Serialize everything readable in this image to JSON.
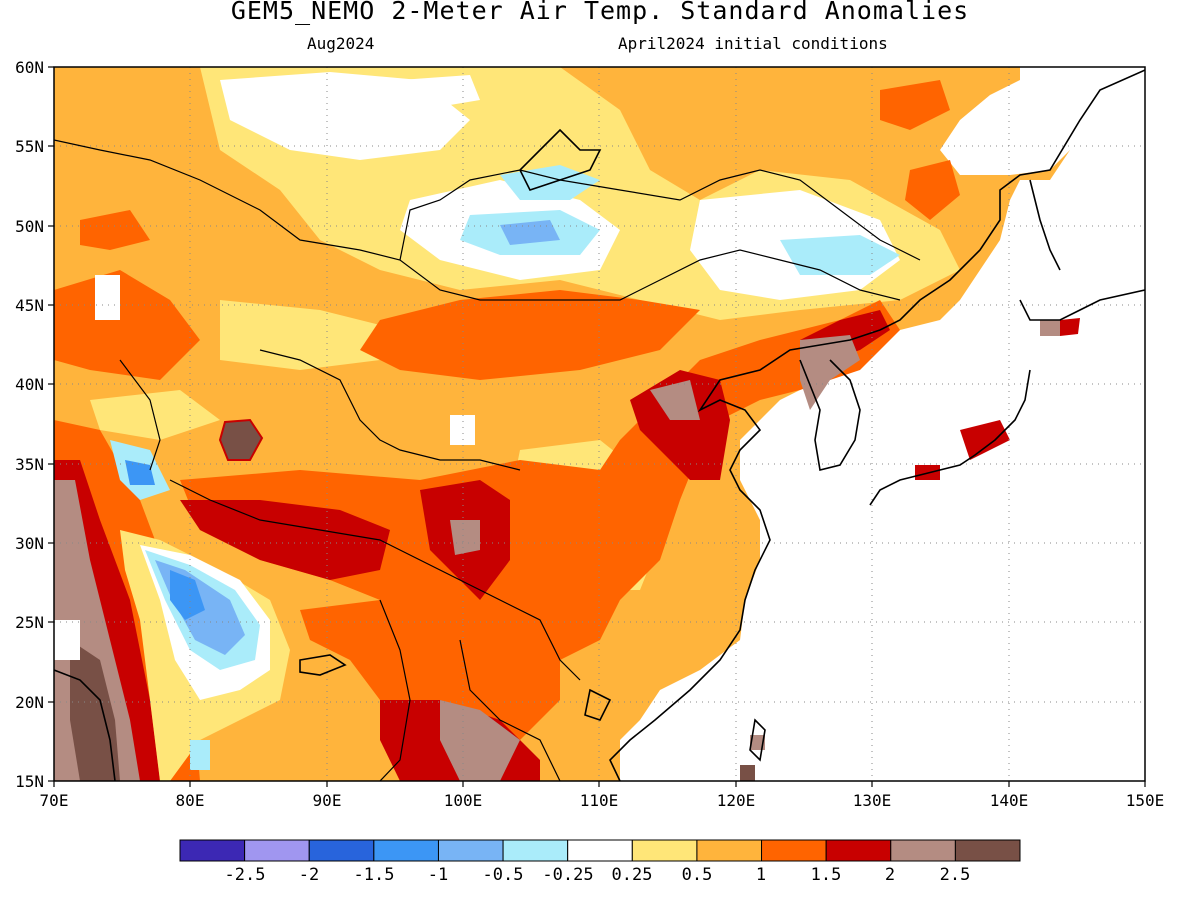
{
  "title": "GEM5_NEMO 2-Meter Air Temp. Standard Anomalies",
  "subtitle_left": "Aug2024",
  "subtitle_right": "April2024 initial conditions",
  "map": {
    "lat_labels": [
      "60N",
      "55N",
      "50N",
      "45N",
      "40N",
      "35N",
      "30N",
      "25N",
      "20N",
      "15N"
    ],
    "lon_labels": [
      "70E",
      "80E",
      "90E",
      "100E",
      "110E",
      "120E",
      "130E",
      "140E",
      "150E"
    ],
    "lat_range": [
      15,
      60
    ],
    "lon_range": [
      70,
      150
    ],
    "grid": "dotted"
  },
  "colorbar": {
    "boundary_labels": [
      "-2.5",
      "-2",
      "-1.5",
      "-1",
      "-0.5",
      "-0.25",
      "0.25",
      "0.5",
      "1",
      "1.5",
      "2",
      "2.5"
    ],
    "colors": [
      "#3c28b4",
      "#a096f0",
      "#2864dc",
      "#3c96f5",
      "#78b4f5",
      "#aaecfa",
      "#ffffff",
      "#ffe678",
      "#ffb43c",
      "#ff6400",
      "#c80000",
      "#b48c82",
      "#785046"
    ]
  }
}
